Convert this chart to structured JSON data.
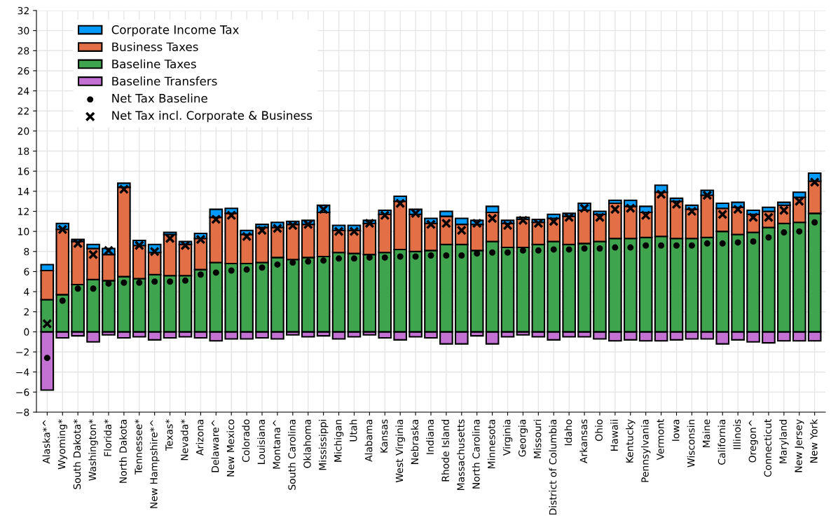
{
  "chart_data": {
    "type": "bar",
    "stacked": true,
    "categories": [
      "Alaska*^",
      "Wyoming*",
      "South Dakota*",
      "Washington*",
      "Florida*",
      "North Dakota",
      "Tennessee*",
      "New Hampshire*^",
      "Texas*",
      "Nevada*",
      "Arizona",
      "Delaware^",
      "New Mexico",
      "Colorado",
      "Louisiana",
      "Montana^",
      "South Carolina",
      "Oklahoma",
      "Mississippi",
      "Michigan",
      "Utah",
      "Alabama",
      "Kansas",
      "West Virginia",
      "Nebraska",
      "Indiana",
      "Rhode Island",
      "Massachusetts",
      "North Carolina",
      "Minnesota",
      "Virginia",
      "Georgia",
      "Missouri",
      "District of Columbia",
      "Idaho",
      "Arkansas",
      "Ohio",
      "Hawaii",
      "Kentucky",
      "Pennsylvania",
      "Vermont",
      "Iowa",
      "Wisconsin",
      "Maine",
      "California",
      "Illinois",
      "Oregon^",
      "Connecticut",
      "Maryland",
      "New Jersey",
      "New York"
    ],
    "series": [
      {
        "name": "Baseline Transfers",
        "color": "#c371d2",
        "values": [
          -5.8,
          -0.6,
          -0.4,
          -1.0,
          -0.3,
          -0.6,
          -0.5,
          -0.8,
          -0.6,
          -0.5,
          -0.6,
          -0.9,
          -0.7,
          -0.7,
          -0.6,
          -0.7,
          -0.3,
          -0.5,
          -0.4,
          -0.7,
          -0.5,
          -0.3,
          -0.6,
          -0.8,
          -0.5,
          -0.6,
          -1.2,
          -1.2,
          -0.4,
          -1.2,
          -0.5,
          -0.3,
          -0.5,
          -0.8,
          -0.5,
          -0.5,
          -0.7,
          -0.9,
          -0.8,
          -0.9,
          -0.9,
          -0.8,
          -0.7,
          -0.7,
          -1.2,
          -0.8,
          -1.0,
          -1.1,
          -0.9,
          -0.9,
          -0.9
        ]
      },
      {
        "name": "Baseline Taxes",
        "color": "#3ea44e",
        "values": [
          3.2,
          3.7,
          4.7,
          5.2,
          5.1,
          5.5,
          5.3,
          5.7,
          5.6,
          5.6,
          6.2,
          6.9,
          6.8,
          6.8,
          6.9,
          7.4,
          7.2,
          7.4,
          7.5,
          7.9,
          7.8,
          7.7,
          7.9,
          8.2,
          8.0,
          8.1,
          8.7,
          8.7,
          8.1,
          9.0,
          8.4,
          8.4,
          8.7,
          9.0,
          8.7,
          8.8,
          9.0,
          9.3,
          9.3,
          9.4,
          9.5,
          9.3,
          9.3,
          9.4,
          10.0,
          9.7,
          9.9,
          10.4,
          10.8,
          10.9,
          11.8
        ]
      },
      {
        "name": "Business Taxes",
        "color": "#e36f47",
        "values": [
          2.9,
          6.5,
          4.3,
          3.1,
          2.6,
          8.9,
          3.3,
          2.2,
          4.1,
          3.1,
          3.1,
          4.5,
          5.0,
          2.9,
          3.5,
          3.0,
          3.5,
          3.3,
          4.4,
          2.2,
          2.3,
          3.1,
          3.8,
          4.8,
          3.7,
          2.7,
          2.8,
          2.0,
          2.6,
          2.9,
          2.4,
          2.8,
          2.2,
          2.3,
          2.8,
          3.3,
          2.7,
          3.5,
          3.2,
          2.5,
          4.4,
          3.7,
          2.9,
          4.2,
          2.3,
          2.7,
          1.8,
          1.6,
          1.8,
          2.5,
          3.2
        ]
      },
      {
        "name": "Corporate Income Tax",
        "color": "#009afa",
        "values": [
          0.6,
          0.6,
          0.2,
          0.4,
          0.6,
          0.4,
          0.5,
          0.8,
          0.2,
          0.3,
          0.5,
          0.8,
          0.5,
          0.4,
          0.3,
          0.5,
          0.3,
          0.4,
          0.7,
          0.5,
          0.5,
          0.3,
          0.4,
          0.5,
          0.5,
          0.5,
          0.5,
          0.6,
          0.4,
          0.6,
          0.3,
          0.2,
          0.3,
          0.4,
          0.3,
          0.7,
          0.3,
          0.3,
          0.6,
          0.6,
          0.7,
          0.3,
          0.4,
          0.5,
          0.5,
          0.5,
          0.4,
          0.4,
          0.3,
          0.5,
          0.8
        ]
      },
      {
        "type": "scatter",
        "marker": "circle",
        "name": "Net Tax Baseline",
        "color": "#000000",
        "values": [
          -2.6,
          3.1,
          4.3,
          4.3,
          4.8,
          4.9,
          4.9,
          5.0,
          5.0,
          5.1,
          5.7,
          5.9,
          6.1,
          6.2,
          6.4,
          6.7,
          6.9,
          7.0,
          7.1,
          7.3,
          7.3,
          7.4,
          7.4,
          7.5,
          7.5,
          7.6,
          7.6,
          7.6,
          7.8,
          7.9,
          7.9,
          8.1,
          8.1,
          8.2,
          8.2,
          8.3,
          8.3,
          8.4,
          8.4,
          8.6,
          8.6,
          8.6,
          8.6,
          8.8,
          8.8,
          8.9,
          9.0,
          9.4,
          9.9,
          10.0,
          10.9
        ]
      },
      {
        "type": "scatter",
        "marker": "cross",
        "name": "Net Tax incl. Corporate & Business",
        "color": "#000000",
        "values": [
          0.8,
          10.2,
          8.8,
          7.7,
          8.1,
          14.2,
          8.6,
          8.0,
          9.3,
          8.6,
          9.2,
          11.2,
          11.6,
          9.5,
          10.1,
          10.3,
          10.6,
          10.7,
          12.2,
          10.0,
          10.0,
          10.8,
          11.6,
          12.8,
          11.8,
          10.7,
          10.8,
          10.1,
          10.8,
          11.3,
          10.6,
          11.1,
          10.8,
          11.0,
          11.4,
          12.3,
          11.4,
          12.2,
          12.3,
          11.6,
          13.7,
          12.7,
          12.0,
          13.6,
          11.7,
          12.2,
          11.4,
          11.4,
          12.1,
          13.0,
          14.9
        ]
      }
    ],
    "ylim": [
      -8,
      32
    ],
    "yticks": [
      -8,
      -6,
      -4,
      -2,
      0,
      2,
      4,
      6,
      8,
      10,
      12,
      14,
      16,
      18,
      20,
      22,
      24,
      26,
      28,
      30,
      32
    ],
    "grid": true,
    "legend": "top left"
  }
}
